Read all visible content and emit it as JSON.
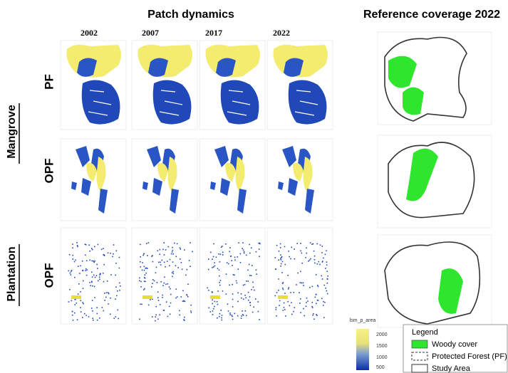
{
  "title": "Patch dynamics",
  "reference_title": "Reference coverage 2022",
  "years": [
    "2002",
    "2007",
    "2017",
    "2022"
  ],
  "groups": [
    {
      "label": "Mangrove",
      "rows": [
        "PF",
        "OPF"
      ]
    },
    {
      "label": "Plantation",
      "rows": [
        "OPF"
      ]
    }
  ],
  "colorbar": {
    "label": "lsm_p_area",
    "ticks": [
      2000,
      1500,
      1000,
      500
    ]
  },
  "legend": {
    "title": "Legend",
    "items": [
      "Woody cover",
      "Protected Forest (PF)",
      "Study Area"
    ]
  }
}
